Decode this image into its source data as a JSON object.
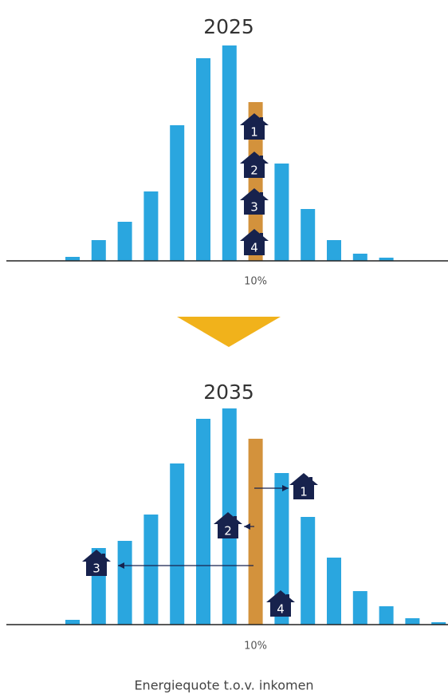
{
  "chart_data": [
    {
      "type": "bar",
      "title": "2025",
      "categories": [
        null,
        null,
        null,
        null,
        null,
        null,
        null,
        "10%",
        null,
        null,
        null,
        null,
        null
      ],
      "values": [
        5,
        26,
        49,
        87,
        170,
        254,
        270,
        199,
        122,
        65,
        26,
        9,
        4
      ],
      "colors": [
        "#2aa6df",
        "#2aa6df",
        "#2aa6df",
        "#2aa6df",
        "#2aa6df",
        "#2aa6df",
        "#2aa6df",
        "#d3923c",
        "#2aa6df",
        "#2aa6df",
        "#2aa6df",
        "#2aa6df",
        "#2aa6df"
      ],
      "annotations": [
        "1",
        "2",
        "3",
        "4"
      ]
    },
    {
      "type": "bar",
      "title": "2035",
      "categories": [
        null,
        null,
        null,
        null,
        null,
        null,
        null,
        "10%",
        null,
        null,
        null,
        null,
        null,
        null,
        null
      ],
      "values": [
        6,
        96,
        105,
        138,
        202,
        258,
        271,
        233,
        190,
        135,
        84,
        42,
        23,
        8,
        3
      ],
      "colors": [
        "#2aa6df",
        "#2aa6df",
        "#2aa6df",
        "#2aa6df",
        "#2aa6df",
        "#2aa6df",
        "#2aa6df",
        "#d3923c",
        "#2aa6df",
        "#2aa6df",
        "#2aa6df",
        "#2aa6df",
        "#2aa6df",
        "#2aa6df",
        "#2aa6df"
      ],
      "annotations": [
        "1",
        "2",
        "3",
        "4"
      ],
      "xlabel": "Energiequote t.o.v. inkomen"
    }
  ]
}
